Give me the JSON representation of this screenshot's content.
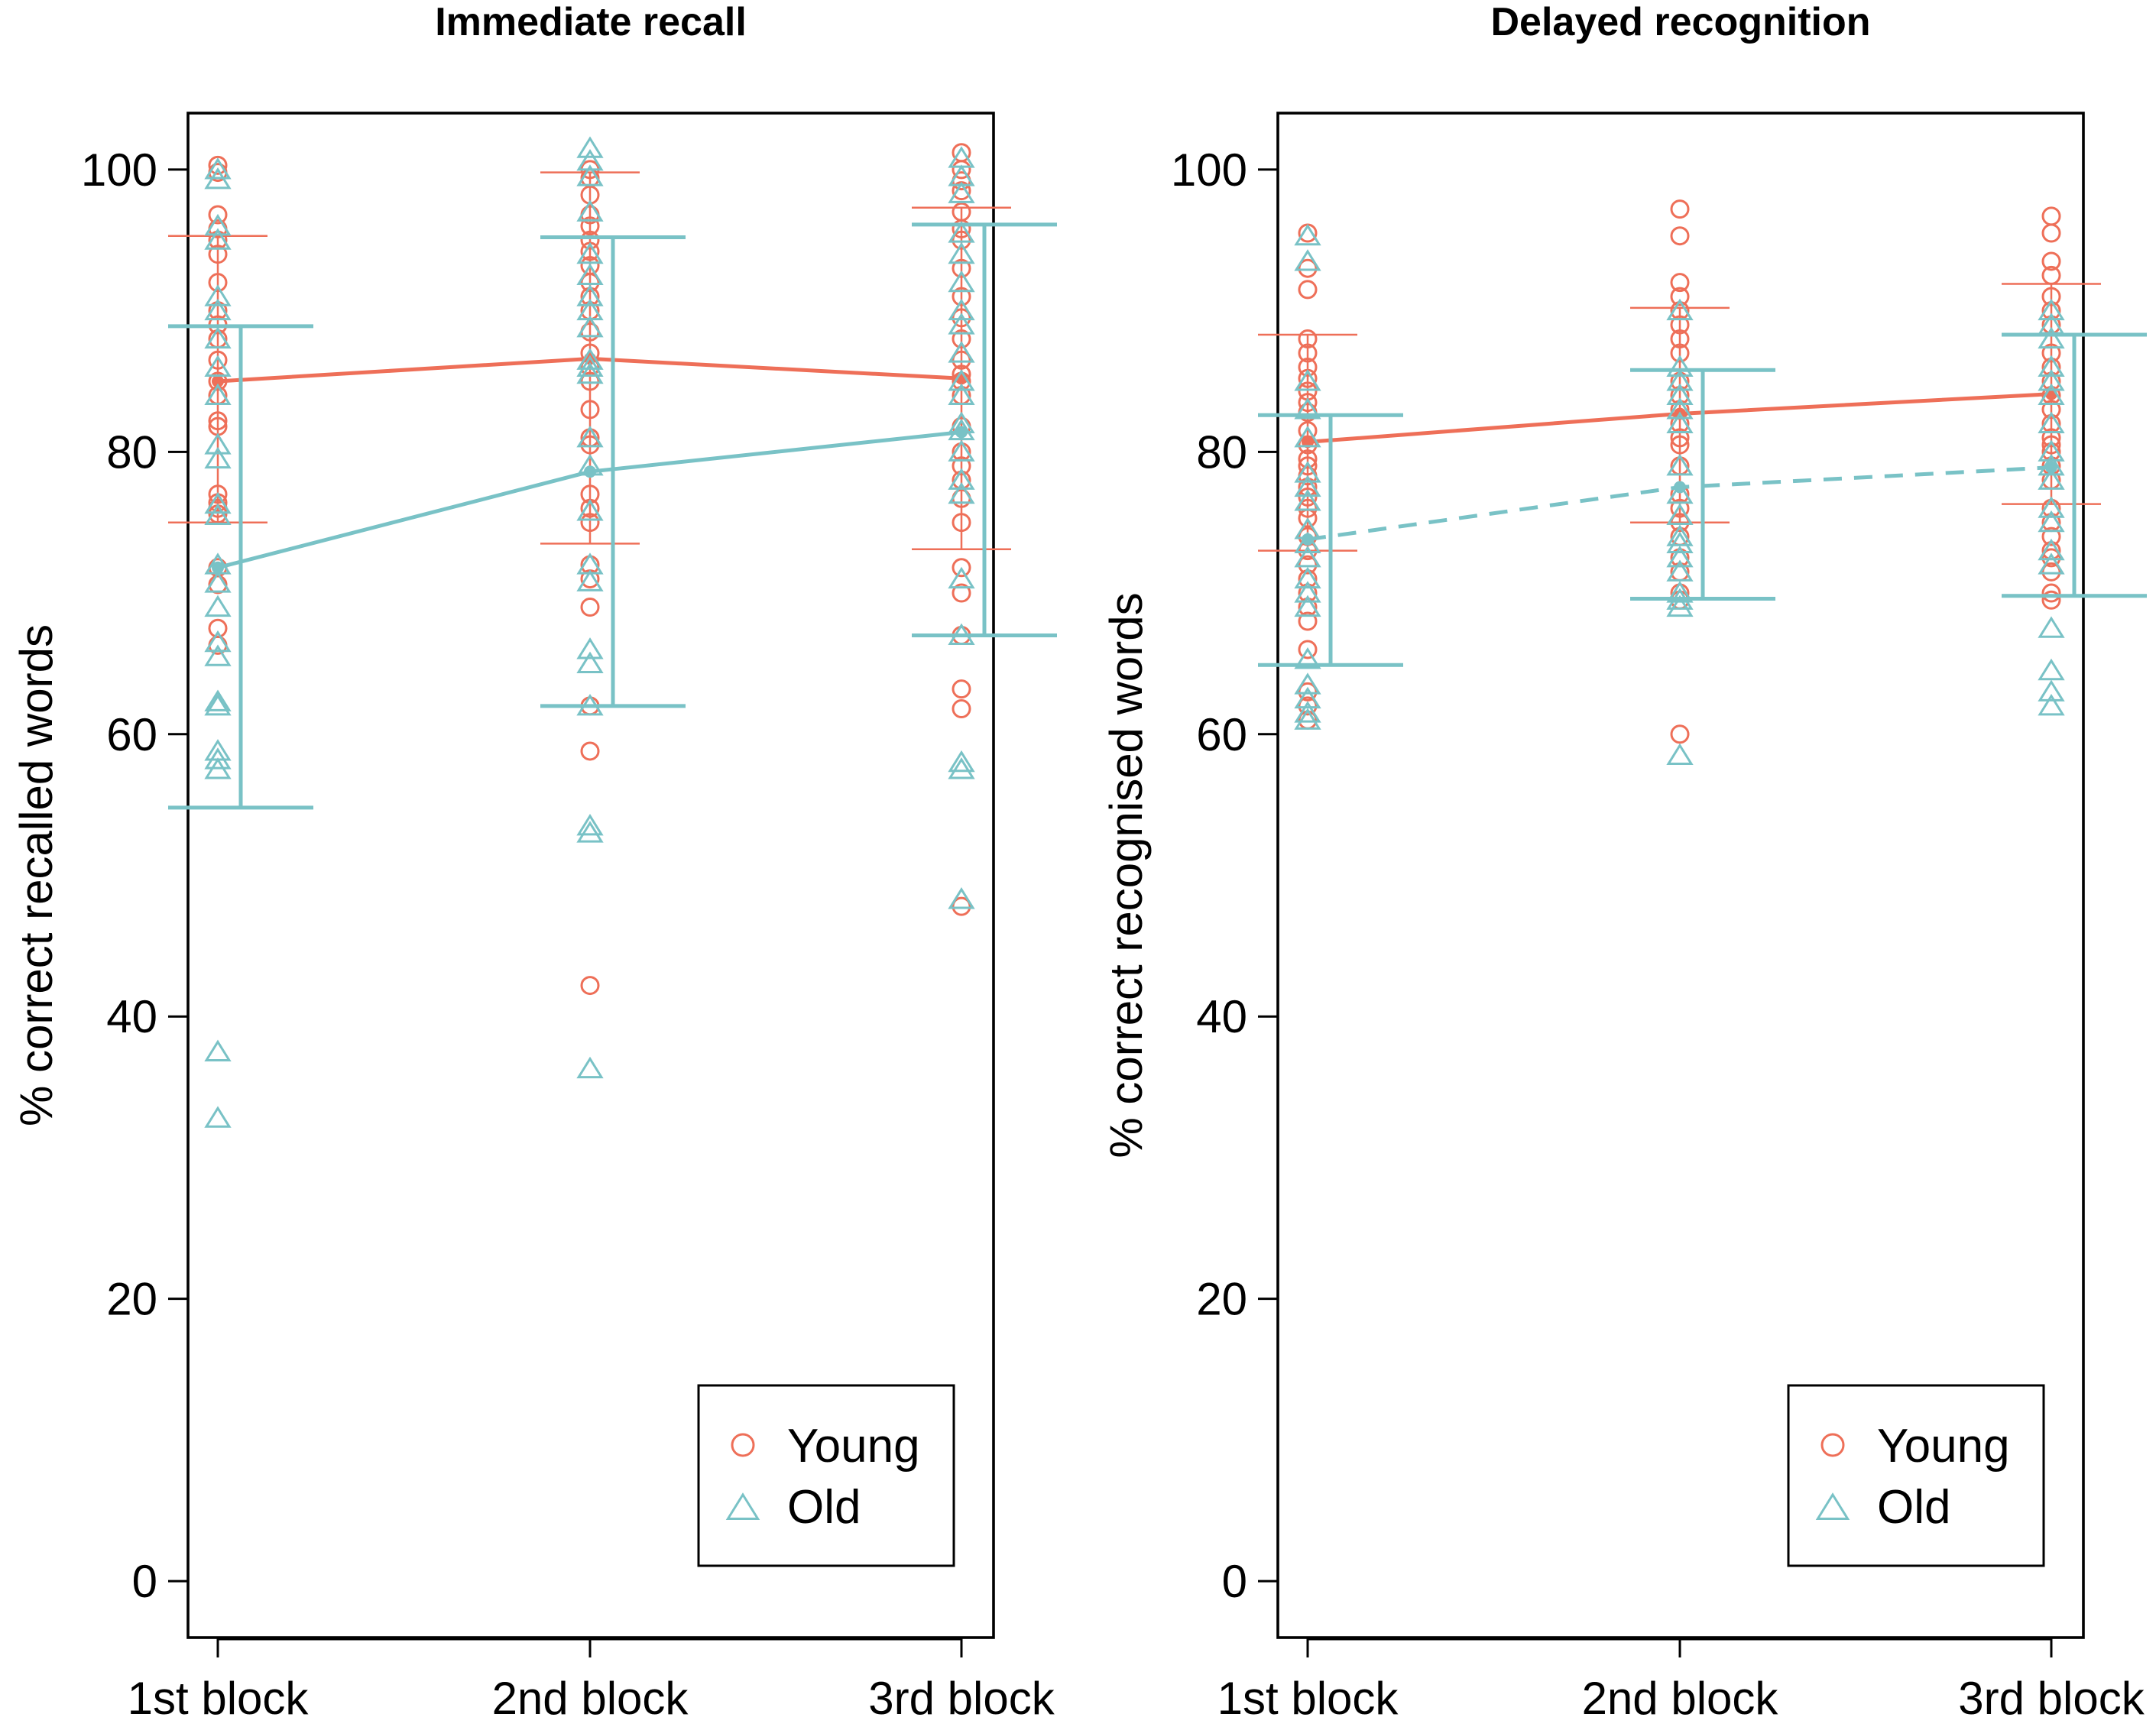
{
  "colors": {
    "young": "#ee6f58",
    "old": "#79c2c6",
    "axis": "#000000"
  },
  "legend": {
    "young": "Young",
    "old": "Old",
    "position": "bottom-right"
  },
  "chart_data": [
    {
      "type": "scatter",
      "title": "Immediate recall",
      "xlabel": "",
      "ylabel": "% correct recalled words",
      "categories": [
        "1st block",
        "2nd block",
        "3rd block"
      ],
      "ylim": [
        -4,
        104
      ],
      "yticks": [
        0,
        20,
        40,
        60,
        80,
        100
      ],
      "series": [
        {
          "name": "Young",
          "marker": "circle",
          "line": "solid",
          "means": [
            85.0,
            86.6,
            85.2
          ],
          "sd_upper": [
            95.3,
            99.8,
            97.3
          ],
          "sd_lower": [
            75.0,
            73.5,
            73.1
          ],
          "points": [
            [
              100.3,
              99.8,
              96.8,
              95.8,
              95.0,
              94.0,
              92.0,
              90.0,
              89.0,
              88.0,
              86.5,
              85.0,
              84.0,
              82.2,
              81.8,
              77.0,
              76.4,
              76.0,
              75.6,
              71.8,
              70.6,
              67.5,
              66.3
            ],
            [
              100.0,
              99.4,
              98.2,
              96.8,
              96.0,
              95.0,
              94.2,
              93.2,
              92.0,
              91.0,
              90.0,
              88.5,
              87.0,
              86.0,
              85.0,
              83.0,
              81.0,
              80.5,
              77.0,
              76.0,
              75.0,
              72.0,
              71.0,
              69.0,
              62.0,
              58.8,
              42.2
            ],
            [
              101.2,
              100.0,
              99.2,
              98.5,
              97.0,
              95.8,
              95.0,
              93.0,
              91.0,
              89.5,
              88.0,
              86.5,
              85.5,
              85.0,
              84.0,
              81.8,
              80.0,
              79.0,
              78.0,
              76.7,
              75.0,
              71.8,
              70.0,
              67.0,
              63.2,
              61.8,
              47.8
            ]
          ]
        },
        {
          "name": "Old",
          "marker": "triangle",
          "line": "solid",
          "means": [
            71.8,
            78.6,
            81.4
          ],
          "sd_upper": [
            88.9,
            95.2,
            96.1
          ],
          "sd_lower": [
            54.8,
            62.0,
            67.0
          ],
          "points": [
            [
              100.0,
              99.3,
              96.0,
              95.0,
              91.0,
              90.0,
              88.0,
              86.0,
              84.0,
              80.5,
              79.5,
              76.3,
              75.5,
              72.0,
              70.7,
              69.0,
              66.5,
              65.5,
              62.3,
              62.0,
              58.8,
              58.2,
              57.5,
              37.5,
              32.8
            ],
            [
              101.5,
              100.6,
              99.5,
              97.0,
              94.0,
              92.5,
              91.0,
              90.0,
              88.8,
              86.5,
              86.0,
              85.5,
              81.0,
              79.0,
              75.8,
              72.0,
              70.8,
              66.0,
              65.0,
              62.0,
              53.5,
              53.0,
              36.3
            ],
            [
              100.8,
              99.5,
              98.3,
              95.5,
              94.0,
              92.0,
              90.0,
              89.0,
              87.0,
              85.0,
              84.0,
              82.0,
              81.5,
              80.0,
              78.0,
              77.0,
              71.0,
              67.0,
              58.0,
              57.5,
              48.3
            ]
          ]
        }
      ]
    },
    {
      "type": "scatter",
      "title": "Delayed recognition",
      "xlabel": "",
      "ylabel": "% correct recognised words",
      "categories": [
        "1st block",
        "2nd block",
        "3rd block"
      ],
      "ylim": [
        -4,
        104
      ],
      "yticks": [
        0,
        20,
        40,
        60,
        80,
        100
      ],
      "series": [
        {
          "name": "Young",
          "marker": "circle",
          "line": "solid",
          "means": [
            80.7,
            82.7,
            84.1
          ],
          "sd_upper": [
            88.3,
            90.2,
            91.9
          ],
          "sd_lower": [
            73.0,
            75.0,
            76.3
          ],
          "points": [
            [
              95.5,
              93.0,
              91.5,
              88.0,
              87.0,
              86.0,
              85.2,
              84.3,
              83.5,
              82.8,
              81.5,
              80.5,
              79.5,
              79.0,
              78.3,
              77.5,
              76.8,
              76.0,
              75.3,
              74.0,
              73.0,
              72.0,
              71.0,
              70.0,
              69.0,
              68.0,
              66.0,
              63.0,
              62.0,
              61.0
            ],
            [
              97.2,
              95.3,
              92.0,
              91.0,
              90.0,
              89.0,
              88.0,
              87.0,
              85.0,
              84.0,
              83.0,
              82.0,
              81.0,
              80.5,
              79.0,
              77.0,
              76.0,
              75.0,
              74.0,
              72.5,
              71.5,
              70.0,
              69.5,
              60.0
            ],
            [
              96.7,
              95.5,
              93.5,
              92.5,
              91.0,
              90.0,
              89.0,
              87.0,
              86.0,
              85.0,
              84.0,
              83.0,
              82.0,
              81.0,
              80.5,
              80.0,
              79.0,
              78.0,
              76.0,
              75.0,
              74.0,
              73.0,
              72.5,
              71.5,
              70.0,
              69.5
            ]
          ]
        },
        {
          "name": "Old",
          "marker": "triangle",
          "line": "dashed",
          "means": [
            73.8,
            77.5,
            78.9
          ],
          "sd_upper": [
            82.6,
            85.8,
            88.3
          ],
          "sd_lower": [
            64.9,
            69.6,
            69.8
          ],
          "points": [
            [
              95.3,
              93.5,
              85.0,
              83.0,
              81.0,
              78.5,
              77.5,
              76.5,
              74.5,
              73.5,
              72.5,
              71.0,
              70.0,
              69.0,
              65.3,
              63.5,
              62.5,
              61.5,
              61.0
            ],
            [
              90.0,
              86.0,
              85.0,
              84.0,
              83.0,
              82.0,
              79.0,
              77.0,
              75.5,
              74.0,
              73.5,
              72.5,
              71.5,
              70.0,
              69.5,
              69.0,
              58.5
            ],
            [
              90.0,
              89.0,
              88.0,
              86.0,
              85.0,
              84.0,
              82.0,
              80.0,
              79.0,
              78.0,
              76.0,
              75.0,
              73.0,
              72.0,
              67.5,
              64.5,
              63.0,
              62.0
            ]
          ]
        }
      ]
    }
  ]
}
